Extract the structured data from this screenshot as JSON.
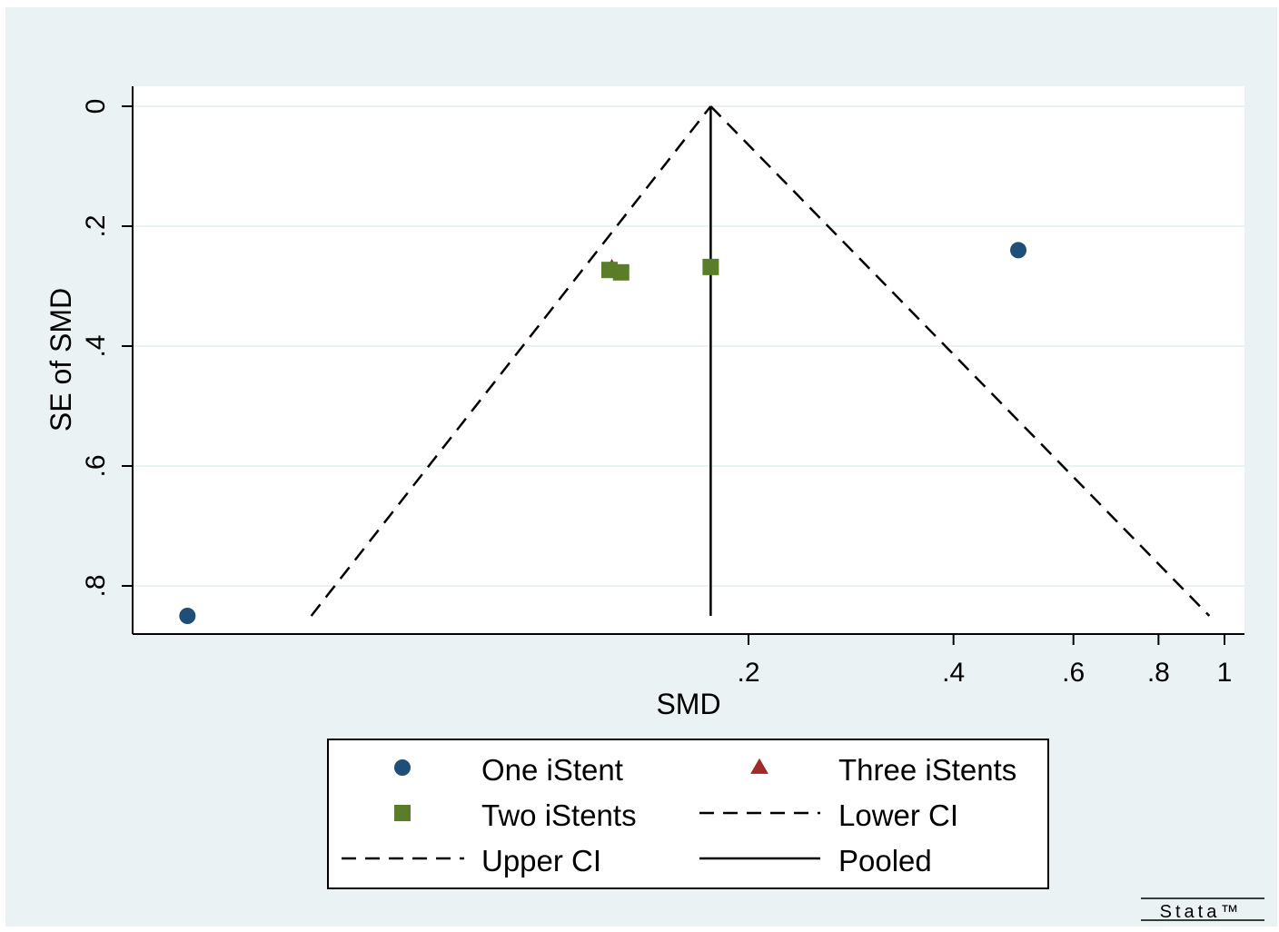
{
  "chart_data": {
    "type": "scatter",
    "title": "",
    "xlabel": "SMD",
    "ylabel": "SE of SMD",
    "x_scale": "log",
    "y_reversed": true,
    "ylim": [
      0,
      0.85
    ],
    "xlim": [
      0.028,
      1.05
    ],
    "x_ticks": [
      {
        "value": 0.2,
        "label": ".2"
      },
      {
        "value": 0.4,
        "label": ".4"
      },
      {
        "value": 0.6,
        "label": ".6"
      },
      {
        "value": 0.8,
        "label": ".8"
      },
      {
        "value": 1.0,
        "label": "1"
      }
    ],
    "y_ticks": [
      {
        "value": 0,
        "label": "0"
      },
      {
        "value": 0.2,
        "label": ".2"
      },
      {
        "value": 0.4,
        "label": ".4"
      },
      {
        "value": 0.6,
        "label": ".6"
      },
      {
        "value": 0.8,
        "label": ".8"
      }
    ],
    "grid": "horizontal",
    "legend_position": "bottom",
    "series": [
      {
        "name": "One iStent",
        "marker": "circle",
        "color": "#1f4e79",
        "points": [
          [
            0.498,
            0.24
          ],
          [
            0.03,
            0.85
          ]
        ]
      },
      {
        "name": "Three iStents",
        "marker": "triangle",
        "color": "#9e2a2b",
        "points": [
          [
            0.126,
            0.27
          ]
        ]
      },
      {
        "name": "Two iStents",
        "marker": "square",
        "color": "#5a7d2a",
        "points": [
          [
            0.125,
            0.273
          ],
          [
            0.13,
            0.277
          ],
          [
            0.176,
            0.268
          ]
        ]
      }
    ],
    "lines": [
      {
        "name": "Lower CI",
        "style": "dashed",
        "color": "#000000",
        "points": [
          [
            0.0456,
            0.85
          ],
          [
            0.176,
            0.0
          ]
        ]
      },
      {
        "name": "Upper CI",
        "style": "dashed",
        "color": "#000000",
        "points": [
          [
            0.176,
            0.0
          ],
          [
            0.95,
            0.85
          ]
        ]
      },
      {
        "name": "Pooled",
        "style": "solid",
        "color": "#000000",
        "points": [
          [
            0.176,
            0.0
          ],
          [
            0.176,
            0.85
          ]
        ]
      }
    ]
  },
  "legend": {
    "items": [
      {
        "label": "One iStent",
        "symbol": "circle",
        "color": "#1f4e79"
      },
      {
        "label": "Three iStents",
        "symbol": "triangle",
        "color": "#9e2a2b"
      },
      {
        "label": "Two iStents",
        "symbol": "square",
        "color": "#5a7d2a"
      },
      {
        "label": "Lower CI",
        "symbol": "dashed",
        "color": "#000000"
      },
      {
        "label": "Upper CI",
        "symbol": "dashed",
        "color": "#000000"
      },
      {
        "label": "Pooled",
        "symbol": "solid",
        "color": "#000000"
      }
    ]
  },
  "branding": {
    "logo": "Stata™"
  },
  "colors": {
    "outer_background": "#eaf2f3",
    "plot_background": "#ffffff",
    "grid": "#eaf2f3"
  }
}
